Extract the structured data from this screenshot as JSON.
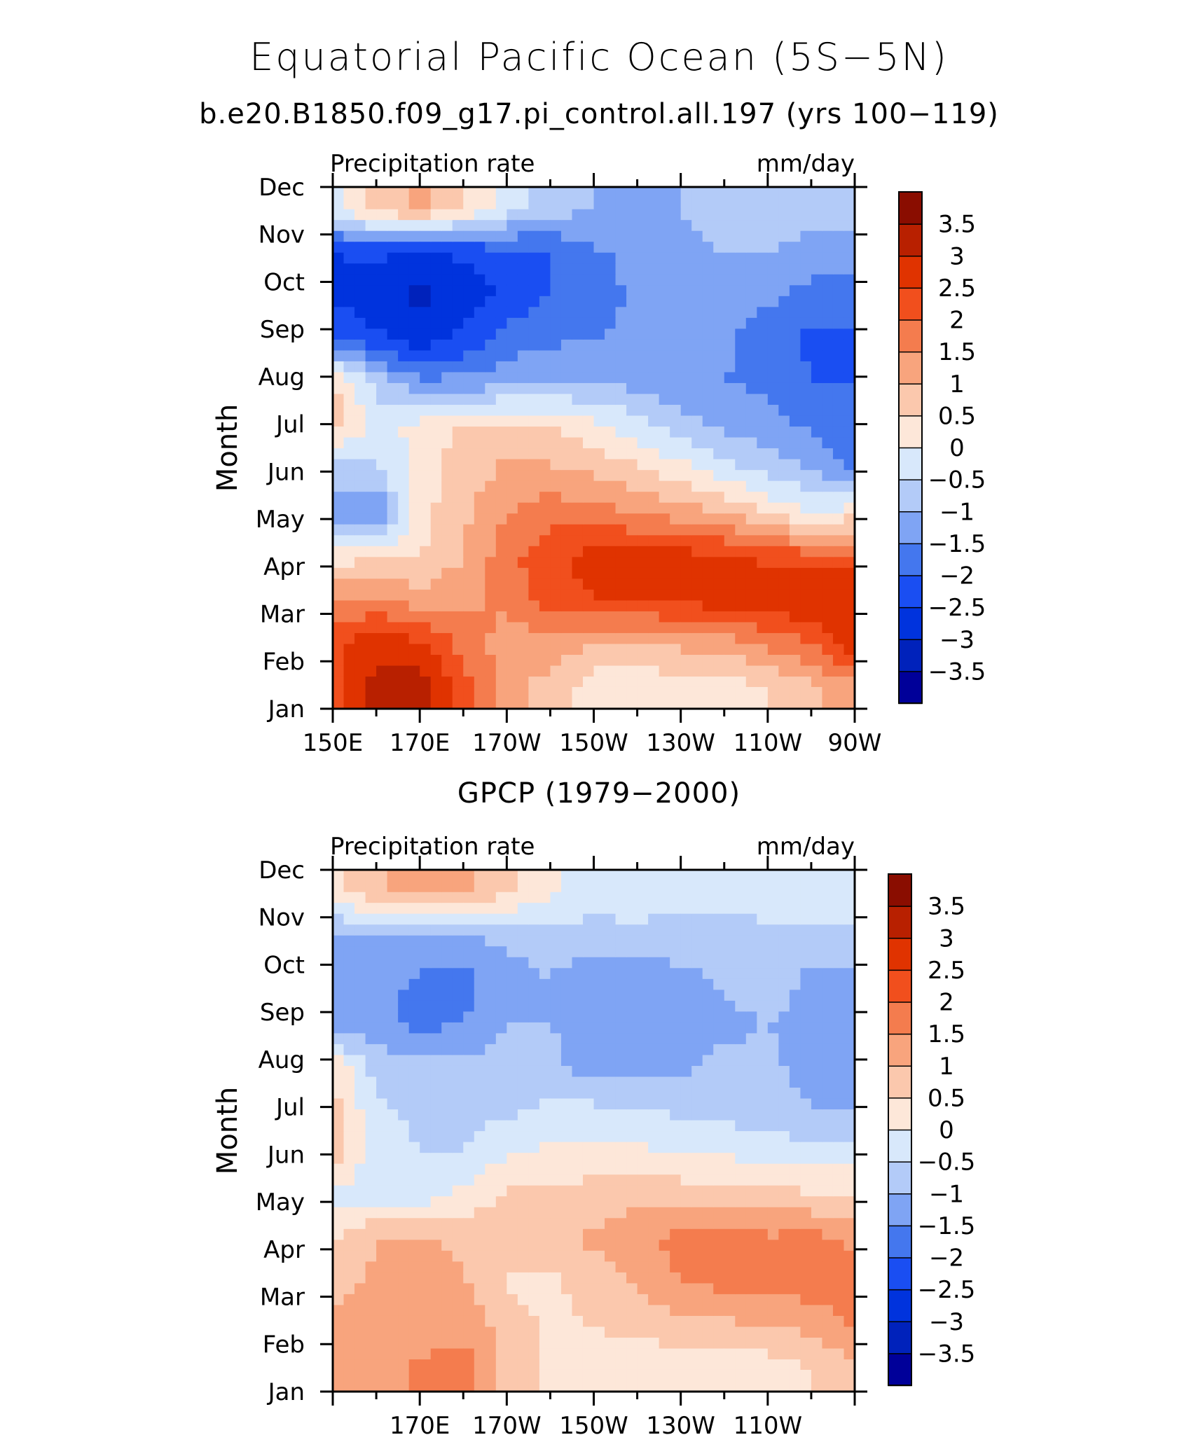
{
  "figure": {
    "title": "Equatorial Pacific Ocean (5S−5N)",
    "subtitle": "b.e20.B1850.f09_g17.pi_control.all.197 (yrs 100−119)"
  },
  "chart_data": [
    {
      "type": "heatmap",
      "title": "",
      "left_label": "Precipitation rate",
      "right_label": "mm/day",
      "ylabel": "Month",
      "xlabel": "",
      "x_ticks": [
        "150E",
        "170E",
        "170W",
        "150W",
        "130W",
        "110W",
        "90W"
      ],
      "x_tick_values": [
        150,
        170,
        190,
        210,
        230,
        250,
        270
      ],
      "xlim": [
        150,
        270
      ],
      "months": [
        "Jan",
        "Feb",
        "Mar",
        "Apr",
        "May",
        "Jun",
        "Jul",
        "Aug",
        "Sep",
        "Oct",
        "Nov",
        "Dec"
      ],
      "colorbar_labels": [
        "3.5",
        "3",
        "2.5",
        "2",
        "1.5",
        "1",
        "0.5",
        "0",
        "−0.5",
        "−1",
        "−1.5",
        "−2",
        "−2.5",
        "−3",
        "−3.5"
      ],
      "levels": [
        -3.5,
        -3,
        -2.5,
        -2,
        -1.5,
        -1,
        -0.5,
        0,
        0.5,
        1,
        1.5,
        2,
        2.5,
        3,
        3.5
      ],
      "colors": [
        "#000099",
        "#0022bb",
        "#0033dd",
        "#1a4ef2",
        "#4477ee",
        "#7fa4f4",
        "#b3cbf8",
        "#d8e8fb",
        "#fde7d9",
        "#fbc8ad",
        "#f8a47d",
        "#f47c4e",
        "#f14f1d",
        "#e03300",
        "#b82000",
        "#8a0d00"
      ],
      "x": [
        150,
        160,
        170,
        180,
        190,
        200,
        210,
        220,
        230,
        240,
        250,
        260,
        270
      ],
      "z": [
        [
          2.2,
          3.2,
          3.3,
          2.2,
          1.2,
          0.8,
          0.2,
          0.1,
          0.2,
          0.3,
          0.5,
          0.8,
          1.4
        ],
        [
          2.4,
          2.8,
          2.6,
          1.8,
          1.3,
          1.3,
          1.0,
          1.0,
          1.1,
          1.2,
          1.6,
          2.0,
          2.8
        ],
        [
          1.4,
          1.6,
          1.2,
          1.4,
          1.6,
          2.2,
          2.5,
          2.5,
          2.6,
          2.8,
          2.9,
          3.0,
          3.0
        ],
        [
          0.3,
          0.4,
          0.5,
          1.0,
          1.8,
          2.4,
          2.7,
          2.8,
          2.7,
          2.6,
          2.4,
          2.2,
          2.2
        ],
        [
          -1.2,
          -1.6,
          0.3,
          0.9,
          1.5,
          1.8,
          1.7,
          1.5,
          1.3,
          1.0,
          0.5,
          0.0,
          0.3
        ],
        [
          -0.8,
          -0.6,
          0.3,
          0.7,
          1.1,
          1.1,
          0.9,
          0.6,
          0.2,
          -0.3,
          -0.7,
          -1.0,
          -1.6
        ],
        [
          0.8,
          -0.3,
          0.2,
          0.6,
          0.7,
          0.5,
          0.2,
          -0.3,
          -0.8,
          -1.1,
          -1.3,
          -1.6,
          -1.8
        ],
        [
          0.6,
          -0.6,
          -1.4,
          -1.3,
          -1.2,
          -1.0,
          -1.0,
          -1.2,
          -1.4,
          -1.5,
          -1.6,
          -2.0,
          -2.0
        ],
        [
          -2.0,
          -2.4,
          -2.8,
          -2.4,
          -1.8,
          -1.6,
          -1.5,
          -1.3,
          -1.2,
          -1.4,
          -1.8,
          -2.1,
          -2.1
        ],
        [
          -2.6,
          -2.8,
          -3.2,
          -2.8,
          -2.4,
          -2.0,
          -1.8,
          -1.4,
          -1.2,
          -1.2,
          -1.4,
          -1.7,
          -1.8
        ],
        [
          -2.5,
          -2.4,
          -2.6,
          -2.4,
          -2.2,
          -2.0,
          -1.6,
          -1.3,
          -1.1,
          -1.0,
          -1.0,
          -1.2,
          -1.2
        ],
        [
          -0.2,
          0.8,
          1.1,
          0.5,
          -0.3,
          -0.8,
          -1.0,
          -1.1,
          -1.0,
          -0.9,
          -0.8,
          -0.7,
          -0.7
        ]
      ]
    },
    {
      "type": "heatmap",
      "title": "GPCP (1979−2000)",
      "left_label": "Precipitation rate",
      "right_label": "mm/day",
      "ylabel": "Month",
      "xlabel": "",
      "x_ticks": [
        "170E",
        "170W",
        "150W",
        "130W",
        "110W"
      ],
      "x_tick_values": [
        170,
        190,
        210,
        230,
        250
      ],
      "xlim": [
        150,
        270
      ],
      "months": [
        "Jan",
        "Feb",
        "Mar",
        "Apr",
        "May",
        "Jun",
        "Jul",
        "Aug",
        "Sep",
        "Oct",
        "Nov",
        "Dec"
      ],
      "colorbar_labels": [
        "3.5",
        "3",
        "2.5",
        "2",
        "1.5",
        "1",
        "0.5",
        "0",
        "−0.5",
        "−1",
        "−1.5",
        "−2",
        "−2.5",
        "−3",
        "−3.5"
      ],
      "levels": [
        -3.5,
        -3,
        -2.5,
        -2,
        -1.5,
        -1,
        -0.5,
        0,
        0.5,
        1,
        1.5,
        2,
        2.5,
        3,
        3.5
      ],
      "colors": [
        "#000099",
        "#0022bb",
        "#0033dd",
        "#1a4ef2",
        "#4477ee",
        "#7fa4f4",
        "#b3cbf8",
        "#d8e8fb",
        "#fde7d9",
        "#fbc8ad",
        "#f8a47d",
        "#f47c4e",
        "#f14f1d",
        "#e03300",
        "#b82000",
        "#8a0d00"
      ],
      "x": [
        150,
        160,
        170,
        180,
        190,
        200,
        210,
        220,
        230,
        240,
        250,
        260,
        270
      ],
      "z": [
        [
          1.0,
          1.2,
          1.6,
          1.8,
          0.8,
          0.4,
          0.3,
          0.2,
          0.1,
          0.1,
          0.2,
          0.5,
          0.9
        ],
        [
          1.2,
          1.4,
          1.2,
          1.3,
          0.8,
          0.4,
          0.5,
          0.6,
          0.8,
          0.9,
          1.0,
          1.1,
          1.6
        ],
        [
          0.8,
          1.1,
          1.4,
          1.1,
          0.4,
          0.4,
          0.7,
          1.1,
          1.5,
          1.6,
          1.6,
          1.8,
          1.6
        ],
        [
          0.4,
          1.0,
          1.0,
          0.9,
          0.7,
          0.9,
          1.1,
          1.4,
          1.7,
          1.8,
          1.6,
          1.7,
          1.4
        ],
        [
          -0.2,
          -0.2,
          -0.3,
          0.2,
          0.6,
          0.7,
          0.7,
          0.8,
          0.8,
          0.8,
          0.7,
          0.6,
          0.6
        ],
        [
          0.8,
          -0.3,
          -0.5,
          -0.5,
          -0.1,
          0.1,
          0.2,
          0.1,
          0.0,
          -0.1,
          -0.2,
          -0.3,
          -0.3
        ],
        [
          0.7,
          -0.4,
          -0.6,
          -0.7,
          -0.6,
          -0.4,
          -0.4,
          -0.5,
          -0.6,
          -0.7,
          -0.8,
          -1.0,
          -1.0
        ],
        [
          0.4,
          -0.7,
          -0.9,
          -0.9,
          -0.8,
          -0.9,
          -1.2,
          -1.2,
          -1.1,
          -0.9,
          -0.9,
          -1.2,
          -1.2
        ],
        [
          -1.3,
          -1.4,
          -1.7,
          -1.5,
          -1.0,
          -1.0,
          -1.3,
          -1.4,
          -1.3,
          -1.1,
          -1.0,
          -1.1,
          -1.2
        ],
        [
          -1.2,
          -1.2,
          -1.6,
          -1.7,
          -1.2,
          -1.0,
          -1.3,
          -1.4,
          -1.2,
          -0.9,
          -0.8,
          -1.1,
          -1.2
        ],
        [
          -1.1,
          -1.0,
          -1.0,
          -1.0,
          -0.9,
          -0.8,
          -0.7,
          -0.6,
          -0.6,
          -0.6,
          -0.6,
          -0.6,
          -0.6
        ],
        [
          0.4,
          0.9,
          1.3,
          1.1,
          0.6,
          0.1,
          -0.2,
          -0.3,
          -0.4,
          -0.4,
          -0.3,
          -0.3,
          -0.3
        ]
      ]
    }
  ]
}
